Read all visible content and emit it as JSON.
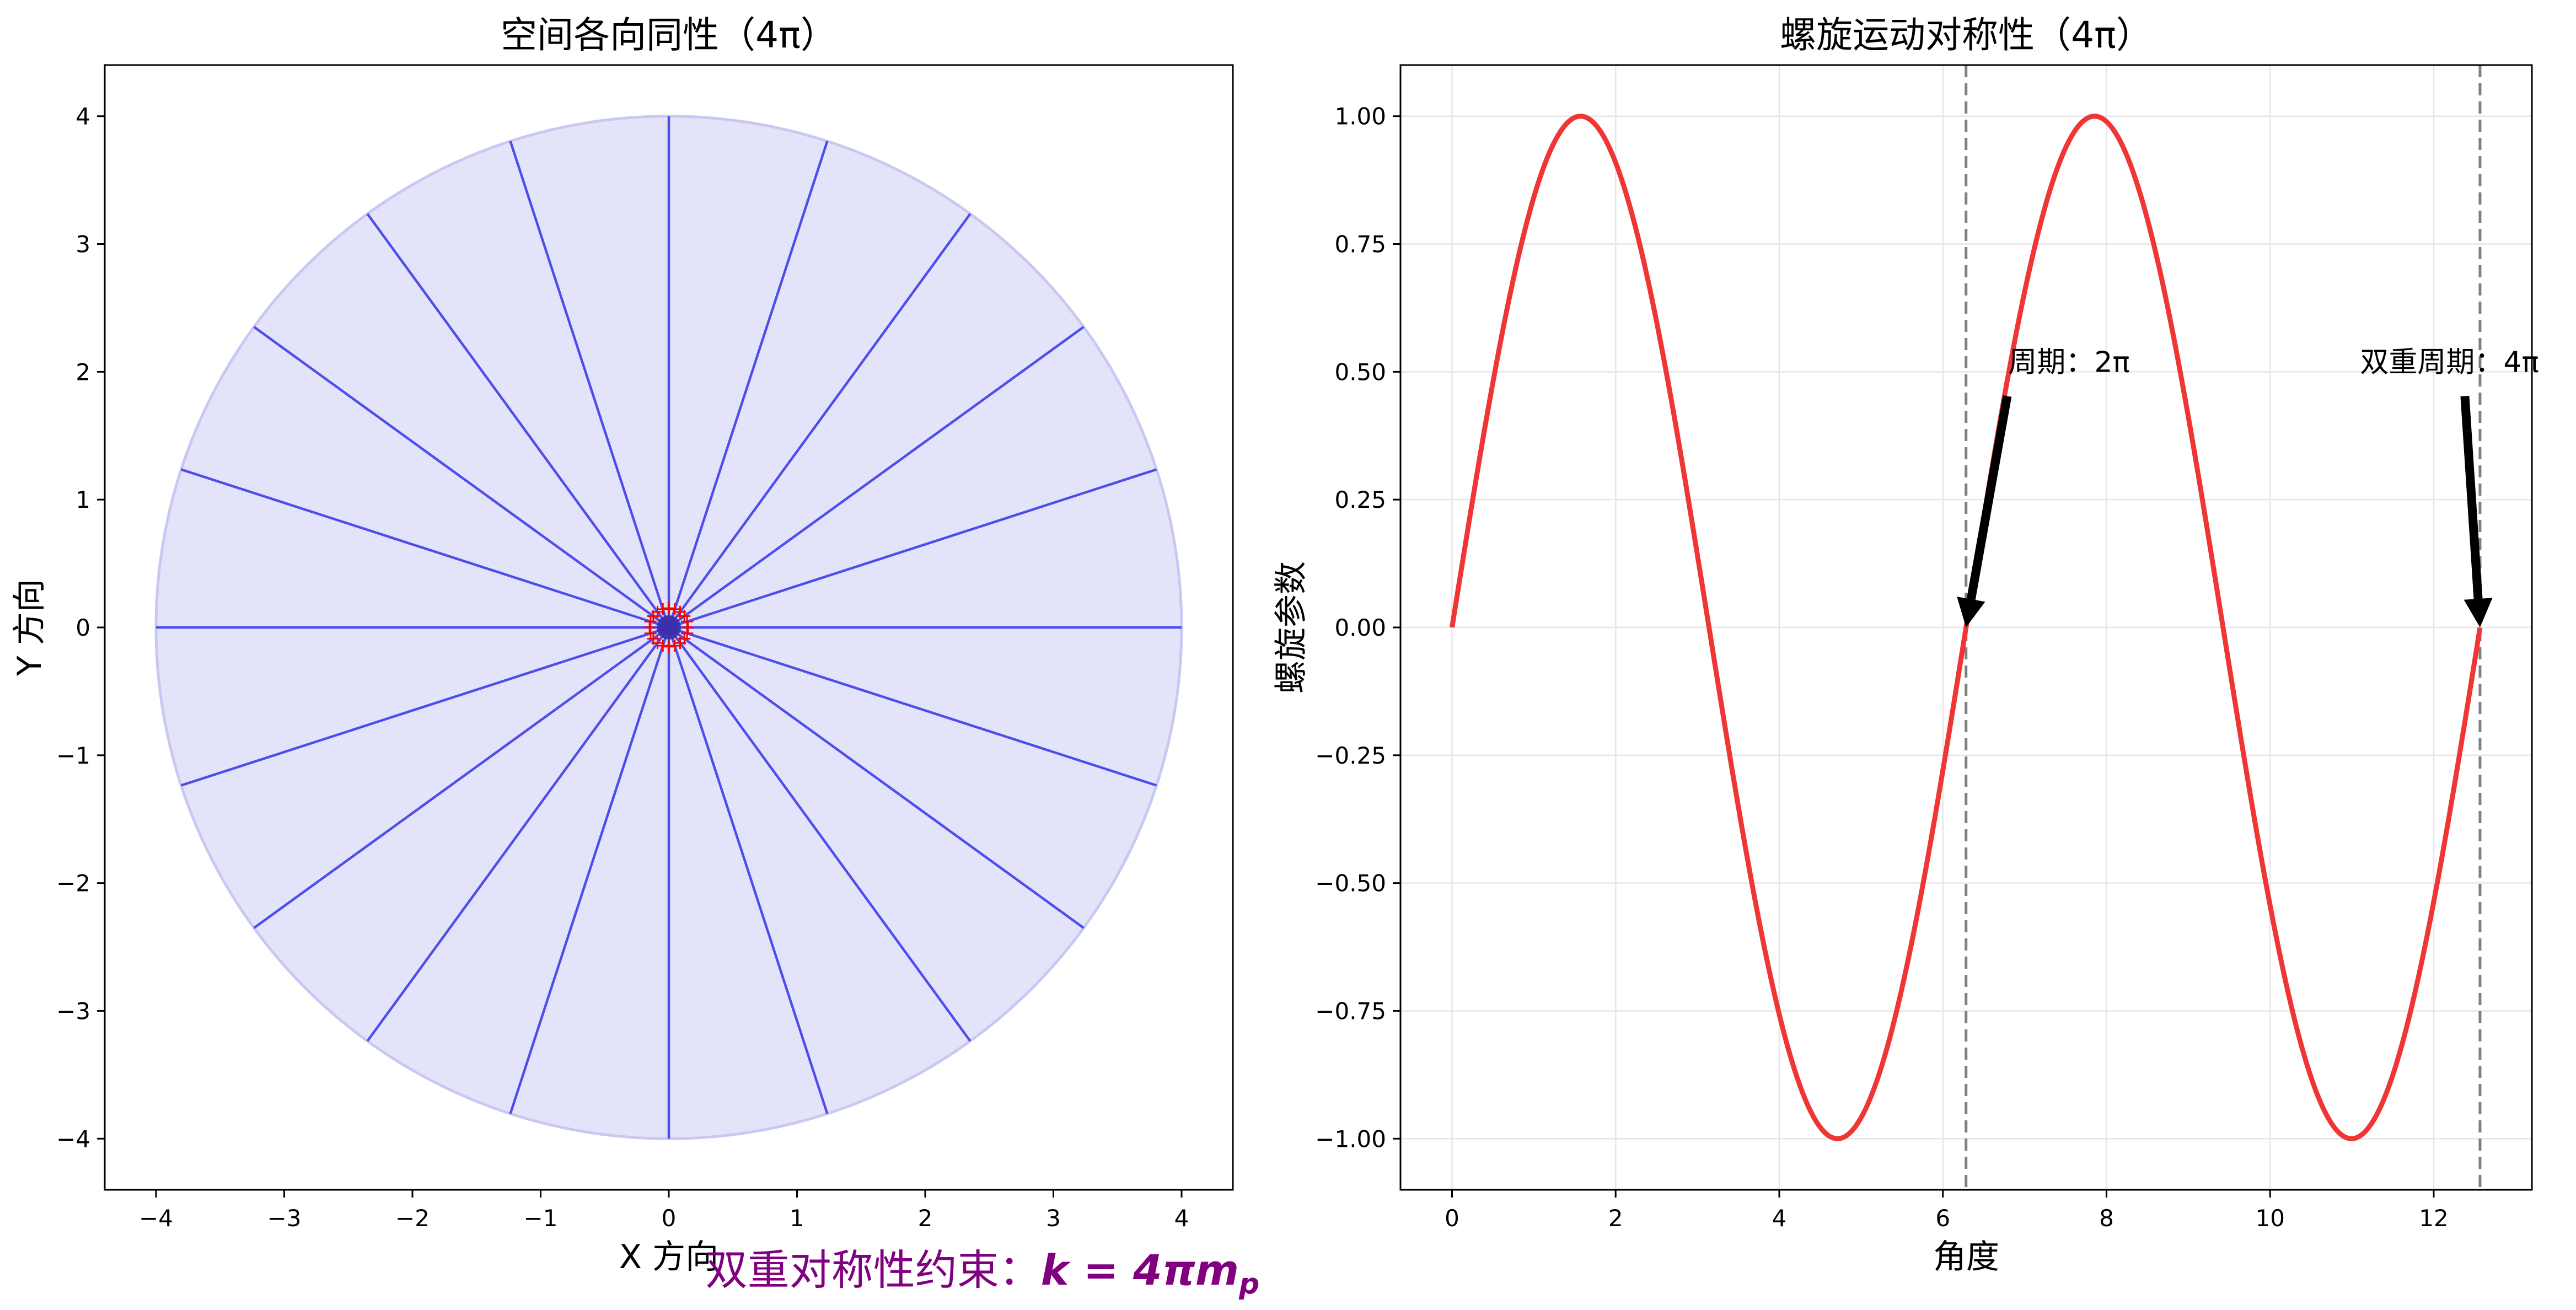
{
  "figure": {
    "suptitle_prefix": "双重对称性约束：",
    "suptitle_formula": "k = 4πm",
    "suptitle_subscript": "p",
    "suptitle_color": "#800080"
  },
  "chart_data": [
    {
      "type": "polar-spokes",
      "title": "空间各向同性（4π）",
      "xlabel": "X 方向",
      "ylabel": "Y 方向",
      "xlim": [
        -4.4,
        4.4
      ],
      "ylim": [
        -4.4,
        4.4
      ],
      "xticks": [
        -4,
        -3,
        -2,
        -1,
        0,
        1,
        2,
        3,
        4
      ],
      "yticks": [
        -4,
        -3,
        -2,
        -1,
        0,
        1,
        2,
        3,
        4
      ],
      "tick_labels": [
        "−4",
        "−3",
        "−2",
        "−1",
        "0",
        "1",
        "2",
        "3",
        "4"
      ],
      "grid": false,
      "circle_radius": 4,
      "spoke_count": 20,
      "spoke_length": 4,
      "center_marker_radius": 0.15,
      "center_marker_count": 20,
      "colors": {
        "fill": "#e3e3fa",
        "circle_edge": "#c8c8f2",
        "spoke": "#4d4dee",
        "center_marker": "#ff0000",
        "center_dot": "#3a2aa0"
      }
    },
    {
      "type": "line",
      "title": "螺旋运动对称性（4π）",
      "xlabel": "角度",
      "ylabel": "螺旋参数",
      "function": "sin",
      "x_range": [
        0,
        12.566
      ],
      "xlim": [
        -0.63,
        13.2
      ],
      "ylim": [
        -1.1,
        1.1
      ],
      "xticks": [
        0,
        2,
        4,
        6,
        8,
        10,
        12
      ],
      "xtick_labels": [
        "0",
        "2",
        "4",
        "6",
        "8",
        "10",
        "12"
      ],
      "yticks": [
        -1.0,
        -0.75,
        -0.5,
        -0.25,
        0.0,
        0.25,
        0.5,
        0.75,
        1.0
      ],
      "ytick_labels": [
        "−1.00",
        "−0.75",
        "−0.50",
        "−0.25",
        "0.00",
        "0.25",
        "0.50",
        "0.75",
        "1.00"
      ],
      "grid": true,
      "vlines": [
        6.283,
        12.566
      ],
      "annotations": [
        {
          "text": "周期：2π",
          "xy": [
            6.283,
            0
          ],
          "xytext": [
            6.8,
            0.5
          ]
        },
        {
          "text": "双重周期：4π",
          "xy": [
            12.566,
            0
          ],
          "xytext": [
            11.1,
            0.5
          ]
        }
      ],
      "colors": {
        "line": "#f03535",
        "vline": "#808080",
        "grid": "#e6e6e6",
        "arrow": "#000000"
      }
    }
  ]
}
